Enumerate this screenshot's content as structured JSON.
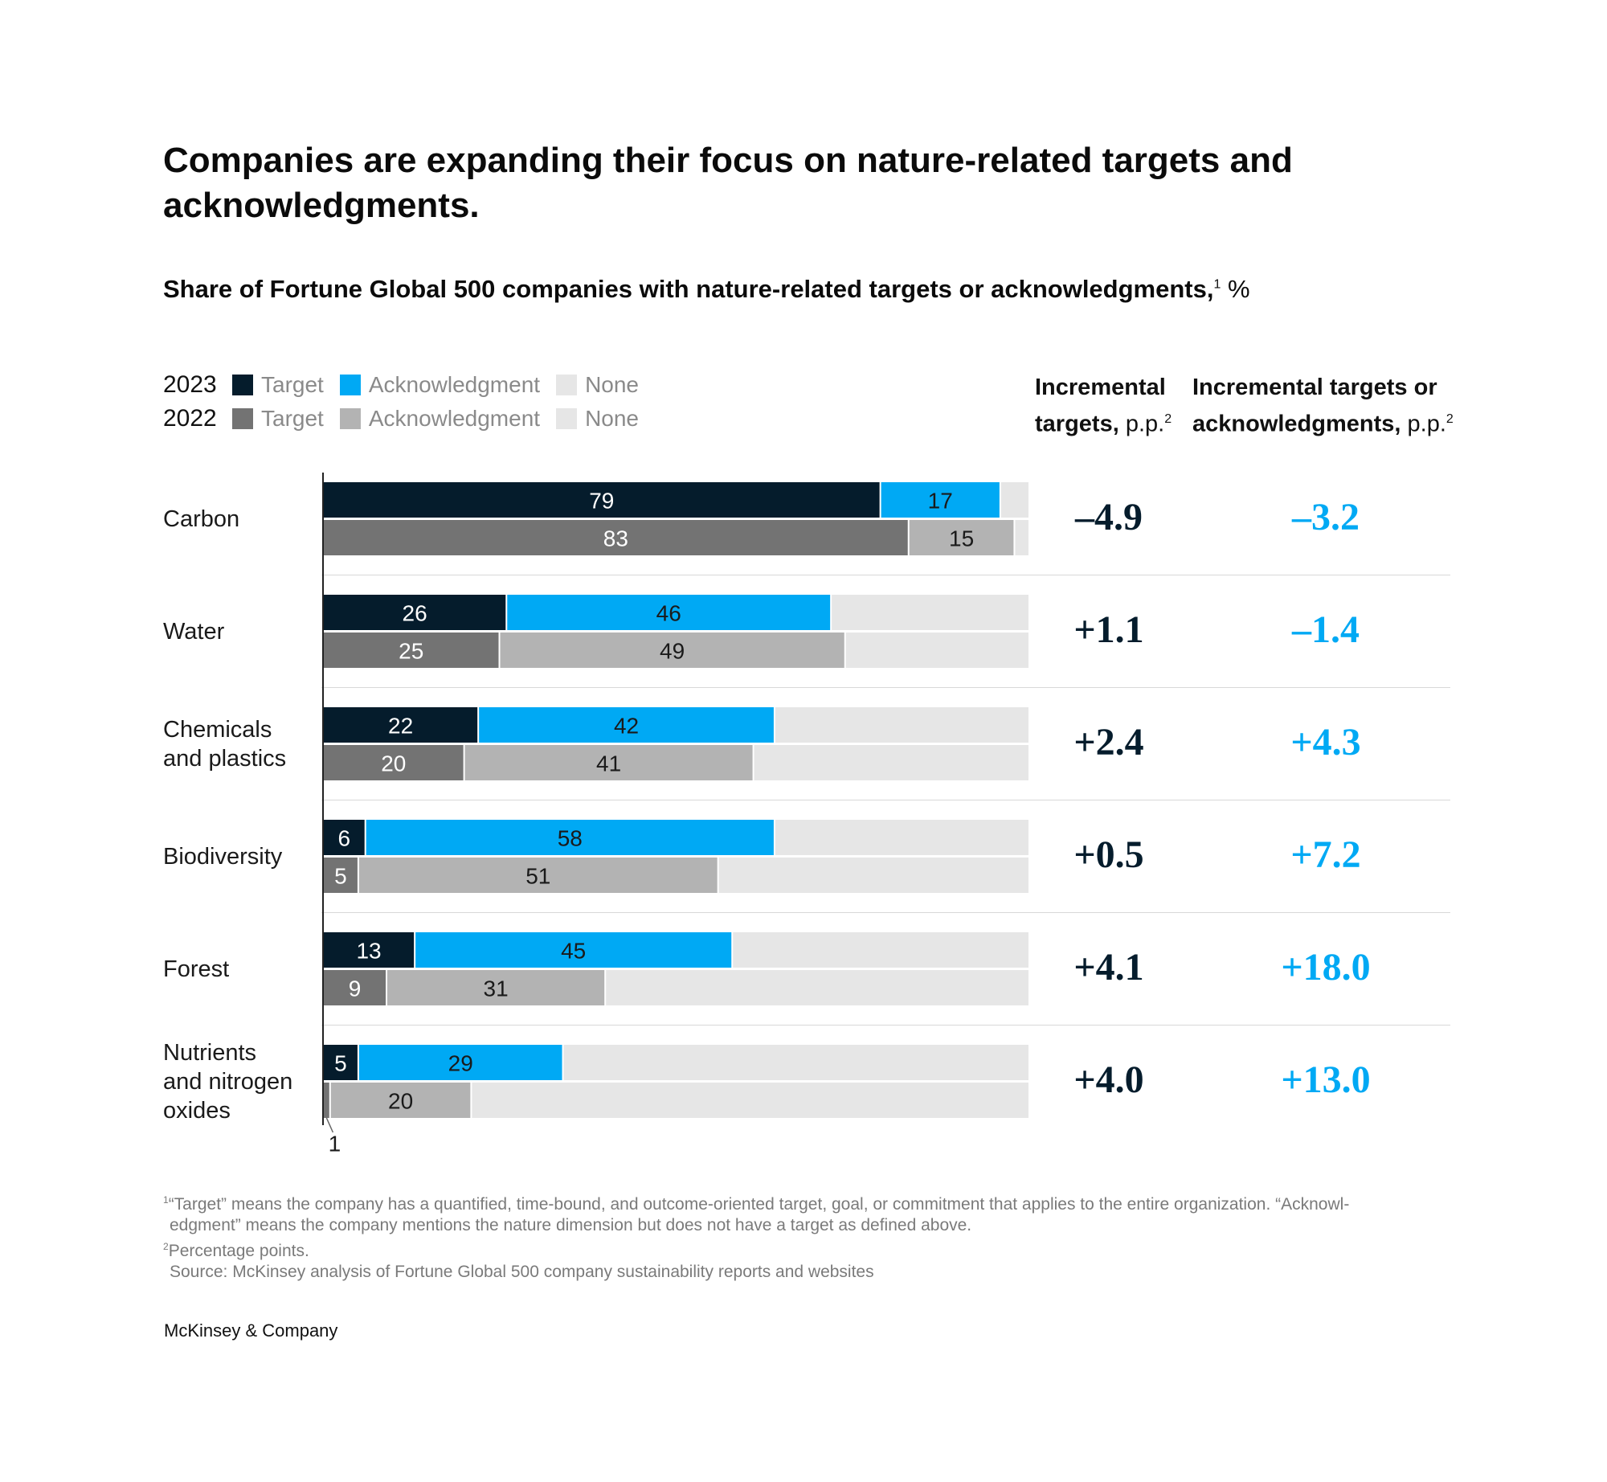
{
  "title": "Companies are expanding their focus on nature-related targets and acknowledgments.",
  "subtitle": "Share of Fortune Global 500 companies with nature-related targets or acknowledgments,",
  "subtitle_sup": "1",
  "subtitle_unit": "%",
  "legend": {
    "rows": [
      {
        "year": "2023",
        "items": [
          {
            "label": "Target",
            "color": "#051c2c"
          },
          {
            "label": "Acknowledgment",
            "color": "#00a9f4"
          },
          {
            "label": "None",
            "color": "#e6e6e6"
          }
        ]
      },
      {
        "year": "2022",
        "items": [
          {
            "label": "Target",
            "color": "#737373"
          },
          {
            "label": "Acknowledgment",
            "color": "#b3b3b3"
          },
          {
            "label": "None",
            "color": "#e6e6e6"
          }
        ]
      }
    ]
  },
  "columns": {
    "targets_line1": "Incremental",
    "targets_line2_bold": "targets,",
    "targets_line2_thin": "p.p.",
    "targets_sup": "2",
    "ack_line1": "Incremental targets or",
    "ack_line2_bold": "acknowledgments,",
    "ack_line2_thin": "p.p.",
    "ack_sup": "2"
  },
  "chart_data": {
    "type": "bar",
    "orientation": "horizontal",
    "stacked": true,
    "xlim": [
      0,
      100
    ],
    "series": [
      "Target",
      "Acknowledgment",
      "None"
    ],
    "categories": [
      {
        "name": [
          "Carbon"
        ],
        "y2023": [
          79,
          17
        ],
        "y2022": [
          83,
          15
        ],
        "delta_targets": "–4.9",
        "delta_ack": "–3.2"
      },
      {
        "name": [
          "Water"
        ],
        "y2023": [
          26,
          46
        ],
        "y2022": [
          25,
          49
        ],
        "delta_targets": "+1.1",
        "delta_ack": "–1.4"
      },
      {
        "name": [
          "Chemicals",
          "and plastics"
        ],
        "y2023": [
          22,
          42
        ],
        "y2022": [
          20,
          41
        ],
        "delta_targets": "+2.4",
        "delta_ack": "+4.3"
      },
      {
        "name": [
          "Biodiversity"
        ],
        "y2023": [
          6,
          58
        ],
        "y2022": [
          5,
          51
        ],
        "delta_targets": "+0.5",
        "delta_ack": "+7.2"
      },
      {
        "name": [
          "Forest"
        ],
        "y2023": [
          13,
          45
        ],
        "y2022": [
          9,
          31
        ],
        "delta_targets": "+4.1",
        "delta_ack": "+18.0"
      },
      {
        "name": [
          "Nutrients",
          "and nitrogen",
          "oxides"
        ],
        "y2023": [
          5,
          29
        ],
        "y2022": [
          1,
          20
        ],
        "delta_targets": "+4.0",
        "delta_ack": "+13.0"
      }
    ],
    "colors": {
      "target2023": "#051c2c",
      "ack2023": "#00a9f4",
      "target2022": "#737373",
      "ack2022": "#b3b3b3",
      "none": "#e6e6e6",
      "label_light": "#ffffff",
      "label_dark": "#1a1a1a"
    }
  },
  "footnotes": {
    "f1_sup": "1",
    "f1_line1": "“Target” means the company has a quantified, time-bound, and outcome-oriented target, goal, or commitment that applies to the entire organization. “Acknowl-",
    "f1_line2": "edgment” means the company mentions the nature dimension but does not have a target as defined above.",
    "f2_sup": "2",
    "f2": "Percentage points.",
    "source": "Source: McKinsey analysis of Fortune Global 500 company sustainability reports and websites"
  },
  "brand": "McKinsey & Company"
}
